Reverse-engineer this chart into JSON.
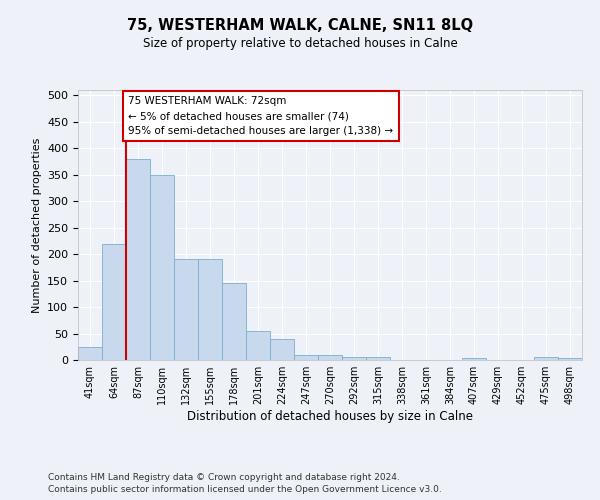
{
  "title": "75, WESTERHAM WALK, CALNE, SN11 8LQ",
  "subtitle": "Size of property relative to detached houses in Calne",
  "xlabel": "Distribution of detached houses by size in Calne",
  "ylabel": "Number of detached properties",
  "bar_color": "#c8d9ee",
  "bar_edge_color": "#7aafd4",
  "categories": [
    "41sqm",
    "64sqm",
    "87sqm",
    "110sqm",
    "132sqm",
    "155sqm",
    "178sqm",
    "201sqm",
    "224sqm",
    "247sqm",
    "270sqm",
    "292sqm",
    "315sqm",
    "338sqm",
    "361sqm",
    "384sqm",
    "407sqm",
    "429sqm",
    "452sqm",
    "475sqm",
    "498sqm"
  ],
  "values": [
    25,
    220,
    380,
    350,
    190,
    190,
    145,
    55,
    40,
    10,
    10,
    5,
    5,
    0,
    0,
    0,
    3,
    0,
    0,
    5,
    3
  ],
  "ylim": [
    0,
    510
  ],
  "yticks": [
    0,
    50,
    100,
    150,
    200,
    250,
    300,
    350,
    400,
    450,
    500
  ],
  "annotation_title": "75 WESTERHAM WALK: 72sqm",
  "annotation_line2": "← 5% of detached houses are smaller (74)",
  "annotation_line3": "95% of semi-detached houses are larger (1,338) →",
  "footnote1": "Contains HM Land Registry data © Crown copyright and database right 2024.",
  "footnote2": "Contains public sector information licensed under the Open Government Licence v3.0.",
  "background_color": "#eef2f8",
  "grid_color": "#ffffff",
  "annotation_box_color": "#ffffff",
  "annotation_box_edge": "#cc0000",
  "vline_color": "#cc0000"
}
